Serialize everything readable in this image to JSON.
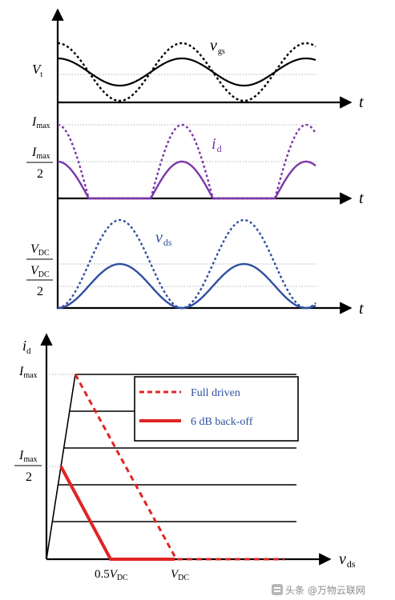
{
  "colors": {
    "axis": "#000000",
    "grid": "#9a9a9a",
    "vgs": "#000000",
    "id": "#7a35a8",
    "vds": "#2f4fa0",
    "loadline": "#e02424"
  },
  "top": {
    "vgs_label": "v",
    "vgs_sub": "gs",
    "vt_label": "V",
    "vt_sub": "t",
    "id_label": "i",
    "id_sub": "d",
    "imax_label": "I",
    "imax_sub": "max",
    "imax_half_num_label": "I",
    "imax_half_num_sub": "max",
    "imax_half_den": "2",
    "vds_label": "v",
    "vds_sub": "ds",
    "vdc_label": "V",
    "vdc_sub": "DC",
    "vdc_half_num_label": "V",
    "vdc_half_num_sub": "DC",
    "vdc_half_den": "2",
    "t_label_1": "t",
    "t_label_2": "t",
    "t_label_3": "t"
  },
  "bottom": {
    "y_axis_label": "i",
    "y_axis_sub": "d",
    "x_axis_label": "v",
    "x_axis_sub": "ds",
    "imax_label": "I",
    "imax_sub": "max",
    "imax_half_num_label": "I",
    "imax_half_num_sub": "max",
    "imax_half_den": "2",
    "half_vdc_prefix": "0.5",
    "half_vdc_label": "V",
    "half_vdc_sub": "DC",
    "vdc_label": "V",
    "vdc_sub": "DC",
    "legend": {
      "full": "Full driven",
      "backoff": "6 dB back-off"
    }
  },
  "watermark": {
    "text": "头条 @万物云联网",
    "icon": "toutiao-logo-icon"
  }
}
